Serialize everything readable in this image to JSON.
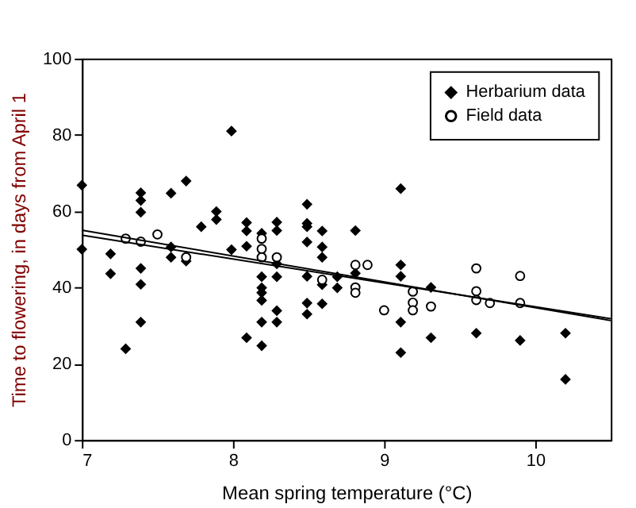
{
  "chart_data": {
    "type": "scatter",
    "xlabel": "Mean spring temperature (°C)",
    "ylabel": "Time to flowering, in days from April 1",
    "xlim": [
      7,
      10.5
    ],
    "xticks": [
      7,
      8,
      9,
      10
    ],
    "ylim": [
      0,
      100
    ],
    "yticks": [
      0,
      20,
      40,
      60,
      80,
      100
    ],
    "grid": false,
    "legend": "top right",
    "series": [
      {
        "name": "Herbarium data",
        "color": "#000000",
        "marker": "diamond",
        "x": [
          7.0,
          7.0,
          7.19,
          7.19,
          7.29,
          7.39,
          7.39,
          7.39,
          7.39,
          7.39,
          7.39,
          7.59,
          7.59,
          7.59,
          7.69,
          7.69,
          7.79,
          7.89,
          7.89,
          7.99,
          7.99,
          8.09,
          8.09,
          8.09,
          8.09,
          8.19,
          8.19,
          8.19,
          8.19,
          8.19,
          8.19,
          8.19,
          8.29,
          8.29,
          8.29,
          8.29,
          8.29,
          8.29,
          8.49,
          8.49,
          8.49,
          8.49,
          8.49,
          8.49,
          8.49,
          8.59,
          8.59,
          8.59,
          8.59,
          8.59,
          8.69,
          8.69,
          8.81,
          8.81,
          9.11,
          9.11,
          9.11,
          9.11,
          9.11,
          9.31,
          9.31,
          9.61,
          9.9,
          10.2,
          10.2
        ],
        "values": [
          66.8,
          50,
          48.8,
          43.6,
          23.9,
          64.8,
          62.8,
          59.7,
          45,
          40.8,
          30.9,
          64.7,
          50.6,
          47.9,
          67.9,
          46.9,
          55.9,
          59.9,
          57.8,
          81,
          49.9,
          57,
          54.8,
          50.8,
          26.8,
          54.2,
          42.8,
          39.9,
          38.6,
          36.6,
          30.9,
          24.7,
          57.1,
          54.9,
          46.2,
          42.8,
          33.9,
          30.9,
          61.8,
          56.8,
          55.9,
          51.9,
          42.9,
          35.9,
          33,
          54.8,
          50.6,
          47.9,
          40.7,
          35.7,
          42.8,
          39.9,
          54.9,
          43.7,
          65.9,
          45.9,
          42.9,
          30.9,
          22.9,
          40,
          26.8,
          28,
          26.1,
          28,
          15.9
        ]
      },
      {
        "name": "Field data",
        "color": "#ffffff",
        "marker": "circle",
        "x": [
          7.29,
          7.39,
          7.5,
          7.69,
          8.19,
          8.19,
          8.19,
          8.29,
          8.59,
          8.81,
          8.89,
          8.81,
          8.81,
          9.0,
          9.19,
          9.19,
          9.19,
          9.31,
          9.61,
          9.61,
          9.61,
          9.7,
          9.9,
          9.9
        ],
        "values": [
          52.8,
          52,
          53.9,
          47.9,
          52.8,
          50.1,
          47.9,
          47.9,
          42,
          45.9,
          45.9,
          40,
          38.6,
          34,
          38.9,
          36,
          34,
          35,
          45,
          39,
          36.7,
          35.9,
          43,
          35.9
        ]
      },
      {
        "type": "line",
        "color": "#000000",
        "x": [
          7,
          10.5
        ],
        "values": [
          55,
          31.3
        ]
      },
      {
        "type": "line",
        "color": "#000000",
        "x": [
          7,
          10.5
        ],
        "values": [
          53.7,
          31.8
        ]
      }
    ]
  }
}
